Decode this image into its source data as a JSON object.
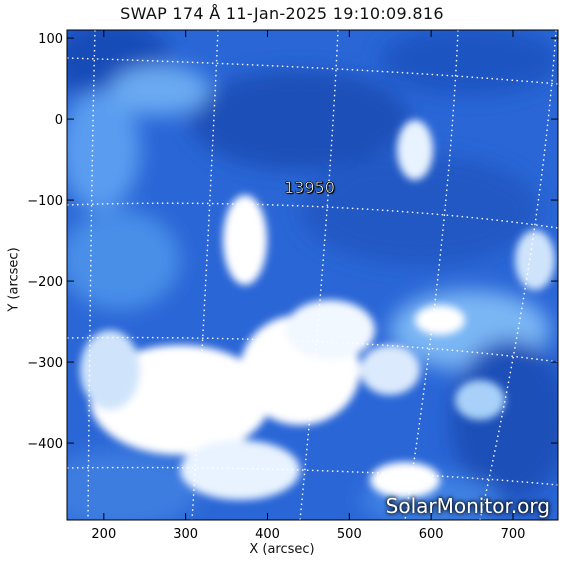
{
  "title": "SWAP 174 Å 11-Jan-2025 19:10:09.816",
  "watermark": "SolarMonitor.org",
  "region_label": "13950",
  "chart_data": {
    "type": "heatmap",
    "title": "SWAP 174 Å 11-Jan-2025 19:10:09.816",
    "xlabel": "X (arcsec)",
    "ylabel": "Y (arcsec)",
    "xlim": [
      155,
      755
    ],
    "ylim": [
      -495,
      110
    ],
    "x_ticks": [
      200,
      300,
      400,
      500,
      600,
      700
    ],
    "y_ticks": [
      100,
      0,
      -100,
      -200,
      -300,
      -400
    ],
    "x_tick_labels": [
      "200",
      "300",
      "400",
      "500",
      "600",
      "700"
    ],
    "y_tick_labels": [
      "100",
      "0",
      "−100",
      "−200",
      "−300",
      "−400"
    ],
    "grid": "dotted heliographic grid",
    "colormap": [
      "#0a2a8c",
      "#1a56c8",
      "#3f86e6",
      "#8cc3f7",
      "#ffffff"
    ],
    "annotations": [
      "13950"
    ]
  }
}
